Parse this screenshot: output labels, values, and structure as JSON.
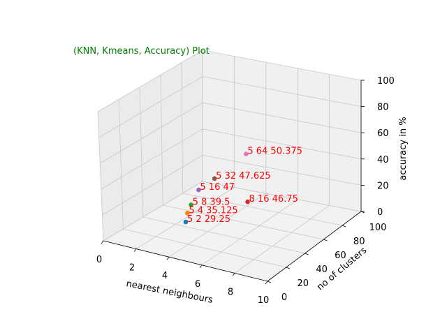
{
  "chart_data": {
    "type": "scatter",
    "projection": "3d",
    "title": "(KNN, Kmeans, Accuracy) Plot",
    "title_color": "#008000",
    "xlabel": "nearest neighbours",
    "ylabel": "no of clusters",
    "zlabel": "accuracy in %",
    "xlim": [
      0,
      10
    ],
    "ylim": [
      0,
      100
    ],
    "zlim": [
      0,
      100
    ],
    "xticks": [
      "0",
      "2",
      "4",
      "6",
      "8",
      "10"
    ],
    "yticks": [
      "0",
      "20",
      "40",
      "60",
      "80",
      "100"
    ],
    "zticks": [
      "0",
      "20",
      "40",
      "60",
      "80",
      "100"
    ],
    "grid": true,
    "label_color": "#ff0000",
    "points": [
      {
        "x": 5,
        "y": 2,
        "z": 29.25,
        "label": "5 2 29.25",
        "color": "#1f77b4"
      },
      {
        "x": 5,
        "y": 4,
        "z": 35.125,
        "label": "5 4 35.125",
        "color": "#ff7f0e"
      },
      {
        "x": 5,
        "y": 8,
        "z": 39.5,
        "label": "5 8 39.5",
        "color": "#2ca02c"
      },
      {
        "x": 8,
        "y": 16,
        "z": 46.75,
        "label": "8 16 46.75",
        "color": "#d62728"
      },
      {
        "x": 5,
        "y": 16,
        "z": 47,
        "label": "5 16 47",
        "color": "#9467bd"
      },
      {
        "x": 5,
        "y": 32,
        "z": 47.625,
        "label": "5 32 47.625",
        "color": "#8c564b"
      },
      {
        "x": 5,
        "y": 64,
        "z": 50.375,
        "label": "5 64 50.375",
        "color": "#e377c2"
      }
    ]
  }
}
